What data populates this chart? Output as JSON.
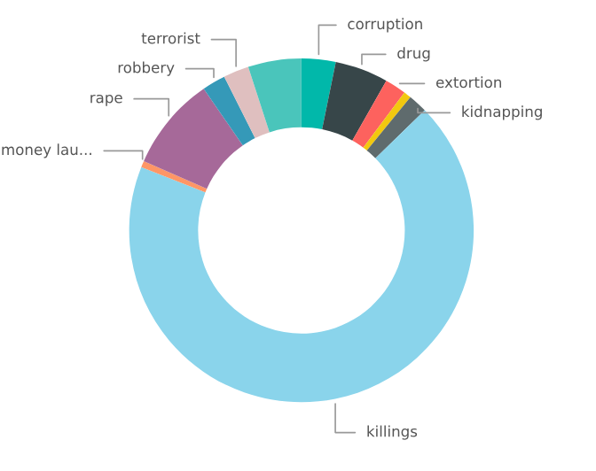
{
  "chart_data": {
    "type": "donut",
    "categories": [
      "corruption",
      "drug",
      "extortion",
      null,
      "kidnapping",
      "killings",
      "money lau...",
      "rape",
      "robbery",
      "terrorist",
      null
    ],
    "values": [
      3.2,
      5.0,
      2.0,
      0.7,
      1.8,
      68.3,
      0.6,
      8.8,
      2.2,
      2.4,
      5.0
    ],
    "colors": [
      "#01b8aa",
      "#374649",
      "#fd625e",
      "#f2c80f",
      "#5f6b6d",
      "#8ad4eb",
      "#fe9666",
      "#a66999",
      "#3599b8",
      "#dfbfbf",
      "#4ac5bb"
    ],
    "legend": false
  }
}
